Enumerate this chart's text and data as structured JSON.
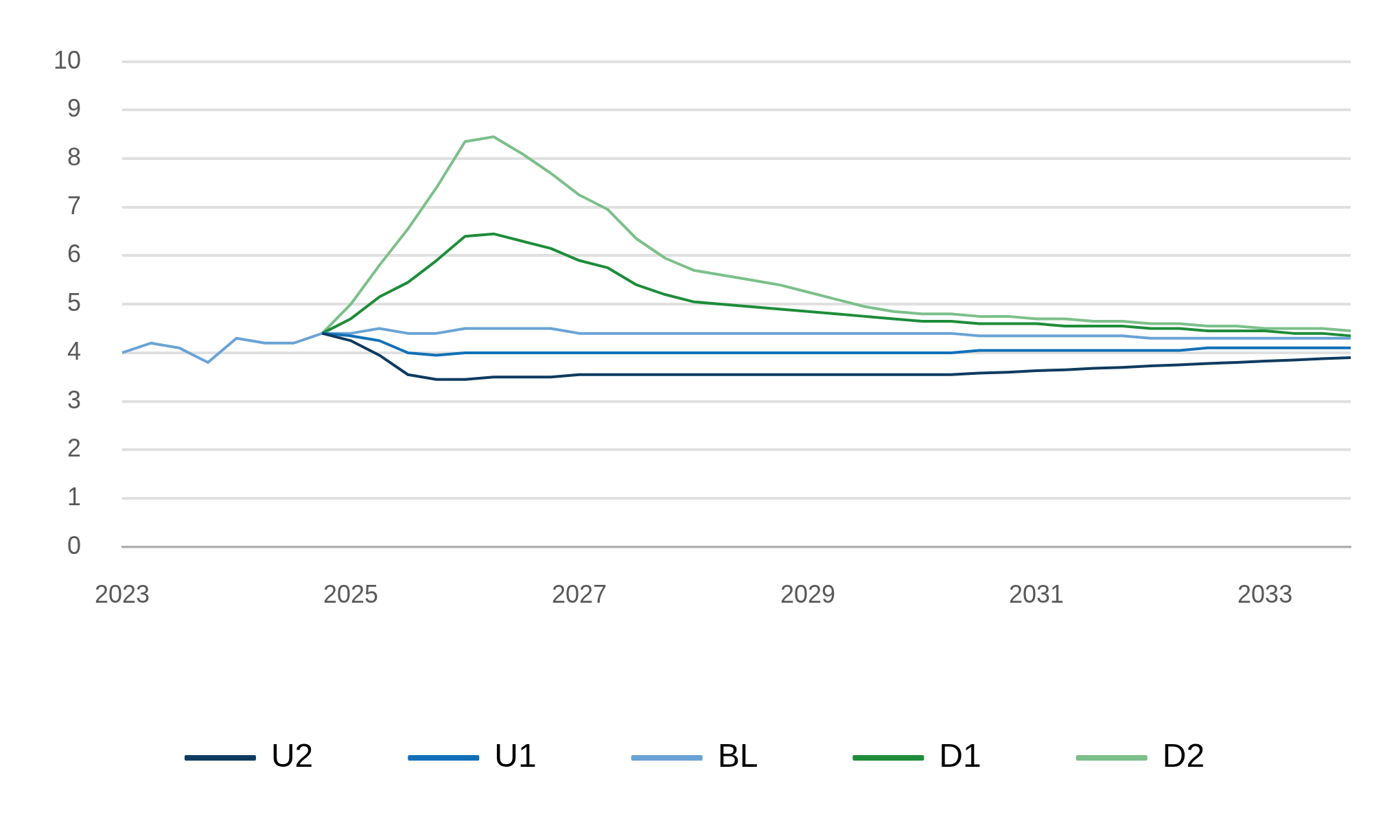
{
  "chart_data": {
    "type": "line",
    "categories": [
      "2023",
      null,
      null,
      null,
      null,
      null,
      null,
      null,
      "2025",
      null,
      null,
      null,
      null,
      null,
      null,
      null,
      "2027",
      null,
      null,
      null,
      null,
      null,
      null,
      null,
      "2029",
      null,
      null,
      null,
      null,
      null,
      null,
      null,
      "2031",
      null,
      null,
      null,
      null,
      null,
      null,
      null,
      "2033",
      null,
      null,
      null
    ],
    "ylim": [
      0,
      10
    ],
    "yticks": [
      0,
      1,
      2,
      3,
      4,
      5,
      6,
      7,
      8,
      9,
      10
    ],
    "grid": "y",
    "legend": "bottom",
    "marker": "none",
    "line_style": "solid",
    "series": [
      {
        "name": "U2",
        "color": "#0e3a5f",
        "values": [
          null,
          null,
          null,
          null,
          null,
          null,
          null,
          4.4,
          4.25,
          3.95,
          3.55,
          3.45,
          3.45,
          3.5,
          3.5,
          3.5,
          3.55,
          3.55,
          3.55,
          3.55,
          3.55,
          3.55,
          3.55,
          3.55,
          3.55,
          3.55,
          3.55,
          3.55,
          3.55,
          3.55,
          3.58,
          3.6,
          3.63,
          3.65,
          3.68,
          3.7,
          3.73,
          3.75,
          3.78,
          3.8,
          3.83,
          3.85,
          3.88,
          3.9
        ]
      },
      {
        "name": "U1",
        "color": "#1170b8",
        "values": [
          null,
          null,
          null,
          null,
          null,
          null,
          null,
          4.4,
          4.35,
          4.25,
          4.0,
          3.95,
          4.0,
          4.0,
          4.0,
          4.0,
          4.0,
          4.0,
          4.0,
          4.0,
          4.0,
          4.0,
          4.0,
          4.0,
          4.0,
          4.0,
          4.0,
          4.0,
          4.0,
          4.0,
          4.05,
          4.05,
          4.05,
          4.05,
          4.05,
          4.05,
          4.05,
          4.05,
          4.1,
          4.1,
          4.1,
          4.1,
          4.1,
          4.1
        ]
      },
      {
        "name": "BL",
        "color": "#6aa3d5",
        "values": [
          4.0,
          4.2,
          4.1,
          3.8,
          4.3,
          4.2,
          4.2,
          4.4,
          4.4,
          4.5,
          4.4,
          4.4,
          4.5,
          4.5,
          4.5,
          4.5,
          4.4,
          4.4,
          4.4,
          4.4,
          4.4,
          4.4,
          4.4,
          4.4,
          4.4,
          4.4,
          4.4,
          4.4,
          4.4,
          4.4,
          4.35,
          4.35,
          4.35,
          4.35,
          4.35,
          4.35,
          4.3,
          4.3,
          4.3,
          4.3,
          4.3,
          4.3,
          4.3,
          4.3
        ]
      },
      {
        "name": "D1",
        "color": "#1e8c3a",
        "values": [
          null,
          null,
          null,
          null,
          null,
          null,
          null,
          4.4,
          4.7,
          5.15,
          5.45,
          5.9,
          6.4,
          6.45,
          6.3,
          6.15,
          5.9,
          5.75,
          5.4,
          5.2,
          5.05,
          5.0,
          4.95,
          4.9,
          4.85,
          4.8,
          4.75,
          4.7,
          4.65,
          4.65,
          4.6,
          4.6,
          4.6,
          4.55,
          4.55,
          4.55,
          4.5,
          4.5,
          4.45,
          4.45,
          4.45,
          4.4,
          4.4,
          4.35
        ]
      },
      {
        "name": "D2",
        "color": "#7cbf8a",
        "values": [
          null,
          null,
          null,
          null,
          null,
          null,
          null,
          4.4,
          5.0,
          5.8,
          6.55,
          7.4,
          8.35,
          8.45,
          8.1,
          7.7,
          7.25,
          6.95,
          6.35,
          5.95,
          5.7,
          5.6,
          5.5,
          5.4,
          5.25,
          5.1,
          4.95,
          4.85,
          4.8,
          4.8,
          4.75,
          4.75,
          4.7,
          4.7,
          4.65,
          4.65,
          4.6,
          4.6,
          4.55,
          4.55,
          4.5,
          4.5,
          4.5,
          4.45
        ]
      }
    ]
  }
}
